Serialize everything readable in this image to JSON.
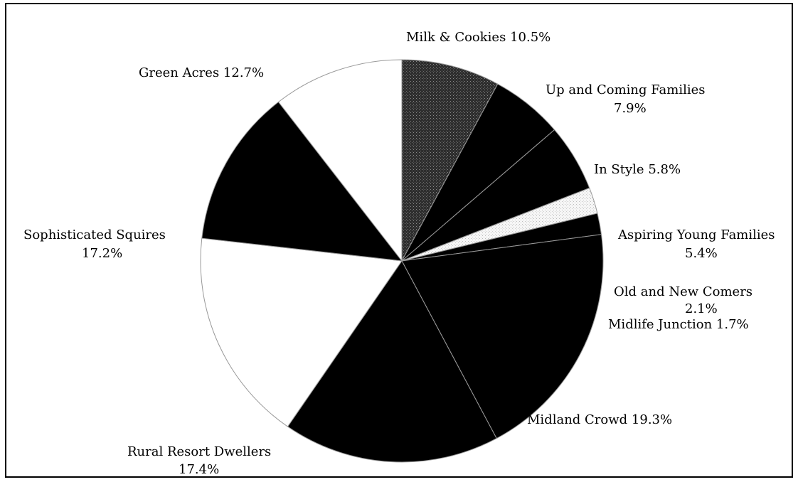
{
  "chart_data": {
    "type": "pie",
    "start_angle_deg": 0,
    "direction": "clockwise",
    "slices": [
      {
        "label": "Up and Coming Families",
        "value_text": "7.9%",
        "value": 7.9,
        "color": "#3a3a3a",
        "pattern": "stipple"
      },
      {
        "label": "In Style",
        "value_text": "5.8%",
        "value": 5.8,
        "color": "#000000"
      },
      {
        "label": "Aspiring Young Families",
        "value_text": "5.4%",
        "value": 5.4,
        "color": "#000000"
      },
      {
        "label": "Old and New Comers",
        "value_text": "2.1%",
        "value": 2.1,
        "color": "#f4f4f4",
        "pattern": "light-stipple"
      },
      {
        "label": "Midlife Junction",
        "value_text": "1.7%",
        "value": 1.7,
        "color": "#000000"
      },
      {
        "label": "Midland Crowd",
        "value_text": "19.3%",
        "value": 19.3,
        "color": "#000000"
      },
      {
        "label": "Rural Resort Dwellers",
        "value_text": "17.4%",
        "value": 17.4,
        "color": "#000000"
      },
      {
        "label": "Sophisticated Squires",
        "value_text": "17.2%",
        "value": 17.2,
        "color": "#ffffff"
      },
      {
        "label": "Green Acres",
        "value_text": "12.7%",
        "value": 12.7,
        "color": "#000000"
      },
      {
        "label": "Milk & Cookies",
        "value_text": "10.5%",
        "value": 10.5,
        "color": "#ffffff"
      }
    ]
  }
}
